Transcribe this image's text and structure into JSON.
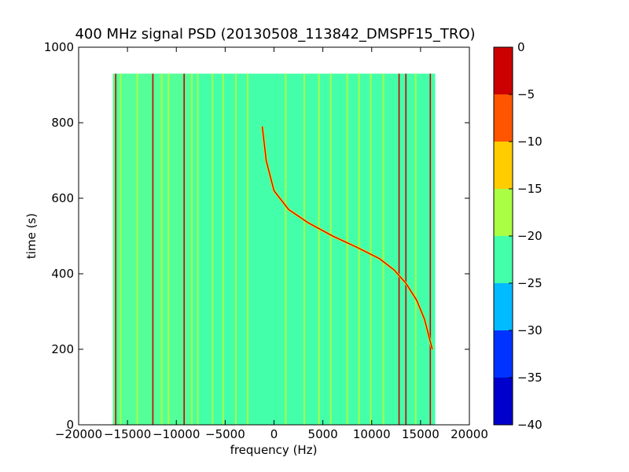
{
  "chart_data": {
    "type": "heatmap",
    "title": "400 MHz signal PSD (20130508_113842_DMSPF15_TRO)",
    "xlabel": "frequency (Hz)",
    "ylabel": "time (s)",
    "xlim": [
      -20000,
      20000
    ],
    "ylim": [
      0,
      1000
    ],
    "xticks": [
      -20000,
      -15000,
      -10000,
      -5000,
      0,
      5000,
      10000,
      15000,
      20000
    ],
    "xtick_labels": [
      "−20000",
      "−15000",
      "−10000",
      "−5000",
      "0",
      "5000",
      "10000",
      "15000",
      "20000"
    ],
    "yticks": [
      0,
      200,
      400,
      600,
      800,
      1000
    ],
    "ytick_labels": [
      "0",
      "200",
      "400",
      "600",
      "800",
      "1000"
    ],
    "data_extent": {
      "x": [
        -16500,
        16500
      ],
      "y": [
        0,
        930
      ]
    },
    "background_level": [
      -25,
      -20
    ],
    "colorbar": {
      "range": [
        -40,
        0
      ],
      "levels": [
        -40,
        -35,
        -30,
        -25,
        -20,
        -15,
        -10,
        -5,
        0
      ],
      "tick_labels": [
        "−40",
        "−35",
        "−30",
        "−25",
        "−20",
        "−15",
        "−10",
        "−5",
        "0"
      ],
      "colors": [
        "#0000cc",
        "#0033ff",
        "#00bbff",
        "#44ffaa",
        "#aaff44",
        "#ffcc00",
        "#ff5500",
        "#cc0000"
      ]
    },
    "strong_tones_hz": [
      -16200,
      -12400,
      -9200,
      12800,
      13500,
      16000
    ],
    "weak_tones_hz": [
      -15700,
      -14000,
      -11500,
      -10800,
      -8400,
      -7800,
      -6300,
      -5200,
      -3900,
      -2700,
      1200,
      3100,
      4600,
      5800,
      7500,
      8700,
      9900,
      11200,
      14500
    ],
    "doppler_trace": {
      "points": [
        [
          -1200,
          790
        ],
        [
          -800,
          700
        ],
        [
          0,
          620
        ],
        [
          1500,
          570
        ],
        [
          3500,
          535
        ],
        [
          6000,
          500
        ],
        [
          8500,
          470
        ],
        [
          10800,
          440
        ],
        [
          12300,
          410
        ],
        [
          13500,
          375
        ],
        [
          14600,
          330
        ],
        [
          15400,
          280
        ],
        [
          15900,
          230
        ],
        [
          16200,
          200
        ]
      ]
    }
  }
}
